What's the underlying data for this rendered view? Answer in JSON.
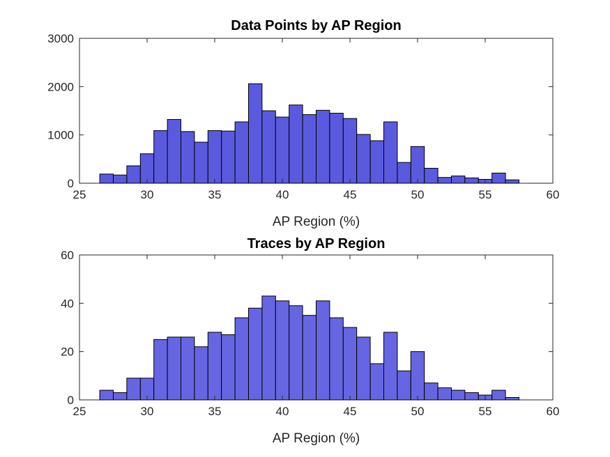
{
  "chart_data": [
    {
      "type": "bar",
      "title": "Data Points by AP Region",
      "xlabel": "AP Region (%)",
      "ylabel": "",
      "xlim": [
        25,
        60
      ],
      "ylim": [
        0,
        3000
      ],
      "xticks": [
        "25",
        "30",
        "35",
        "40",
        "45",
        "50",
        "55",
        "60"
      ],
      "yticks": [
        "0",
        "1000",
        "2000",
        "3000"
      ],
      "grid": false,
      "bar_color": "#5a5adf",
      "bin_edges": [
        26.5,
        27.5,
        28.5,
        29.5,
        30.5,
        31.5,
        32.5,
        33.5,
        34.5,
        35.5,
        36.5,
        37.5,
        38.5,
        39.5,
        40.5,
        41.5,
        42.5,
        43.5,
        44.5,
        45.5,
        46.5,
        47.5,
        48.5,
        49.5,
        50.5,
        51.5,
        52.5,
        53.5,
        54.5,
        55.5,
        56.5,
        57.5
      ],
      "values": [
        190,
        170,
        360,
        610,
        1090,
        1320,
        1070,
        850,
        1090,
        1080,
        1270,
        2060,
        1500,
        1370,
        1620,
        1420,
        1510,
        1450,
        1340,
        1010,
        880,
        1270,
        430,
        760,
        310,
        120,
        150,
        110,
        80,
        210,
        70
      ]
    },
    {
      "type": "bar",
      "title": "Traces by AP Region",
      "xlabel": "AP Region (%)",
      "ylabel": "",
      "xlim": [
        25,
        60
      ],
      "ylim": [
        0,
        60
      ],
      "xticks": [
        "25",
        "30",
        "35",
        "40",
        "45",
        "50",
        "55",
        "60"
      ],
      "yticks": [
        "0",
        "20",
        "40",
        "60"
      ],
      "grid": false,
      "bar_color": "#6666e2",
      "bin_edges": [
        26.5,
        27.5,
        28.5,
        29.5,
        30.5,
        31.5,
        32.5,
        33.5,
        34.5,
        35.5,
        36.5,
        37.5,
        38.5,
        39.5,
        40.5,
        41.5,
        42.5,
        43.5,
        44.5,
        45.5,
        46.5,
        47.5,
        48.5,
        49.5,
        50.5,
        51.5,
        52.5,
        53.5,
        54.5,
        55.5,
        56.5,
        57.5
      ],
      "values": [
        4,
        3,
        9,
        9,
        25,
        26,
        26,
        22,
        28,
        27,
        34,
        38,
        43,
        41,
        39,
        35,
        41,
        34,
        30,
        26,
        15,
        28,
        12,
        20,
        7,
        5,
        4,
        3,
        2,
        4,
        1
      ]
    }
  ]
}
